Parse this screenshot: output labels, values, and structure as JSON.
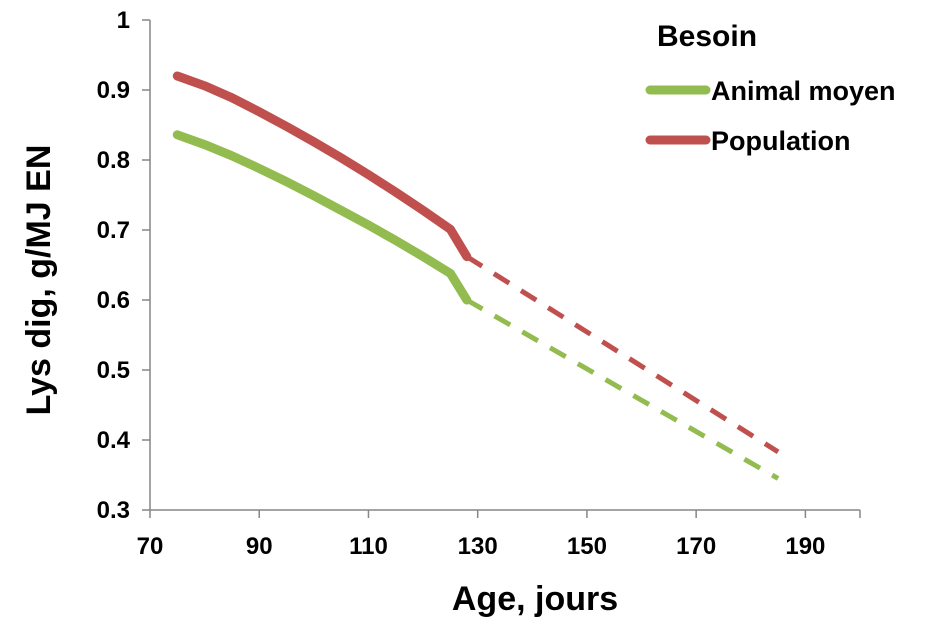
{
  "chart_data": {
    "type": "line",
    "xlabel": "Age, jours",
    "ylabel": "Lys dig, g/MJ EN",
    "xlim": [
      70,
      200
    ],
    "ylim": [
      0.3,
      1.0
    ],
    "x_ticks": [
      70,
      90,
      110,
      130,
      150,
      170,
      190
    ],
    "y_ticks": [
      0.3,
      0.4,
      0.5,
      0.6,
      0.7,
      0.8,
      0.9,
      1.0
    ],
    "y_tick_labels": [
      "0.3",
      "0.4",
      "0.5",
      "0.6",
      "0.7",
      "0.8",
      "0.9",
      "1"
    ],
    "grid": false,
    "legend": {
      "title": "Besoin",
      "position": "top-right"
    },
    "series": [
      {
        "name": "Animal moyen",
        "color": "#92bc4f",
        "solid": {
          "x": [
            75,
            80,
            85,
            90,
            95,
            100,
            105,
            110,
            115,
            120,
            125,
            128
          ],
          "y": [
            0.836,
            0.822,
            0.806,
            0.788,
            0.769,
            0.749,
            0.728,
            0.707,
            0.685,
            0.662,
            0.638,
            0.6
          ]
        },
        "dashed": {
          "x": [
            128,
            185
          ],
          "y": [
            0.6,
            0.345
          ]
        }
      },
      {
        "name": "Population",
        "color": "#c0504d",
        "solid": {
          "x": [
            75,
            80,
            85,
            90,
            95,
            100,
            105,
            110,
            115,
            120,
            125,
            128
          ],
          "y": [
            0.92,
            0.906,
            0.889,
            0.869,
            0.848,
            0.826,
            0.803,
            0.779,
            0.754,
            0.728,
            0.701,
            0.662
          ]
        },
        "dashed": {
          "x": [
            128,
            185
          ],
          "y": [
            0.662,
            0.383
          ]
        }
      }
    ]
  }
}
